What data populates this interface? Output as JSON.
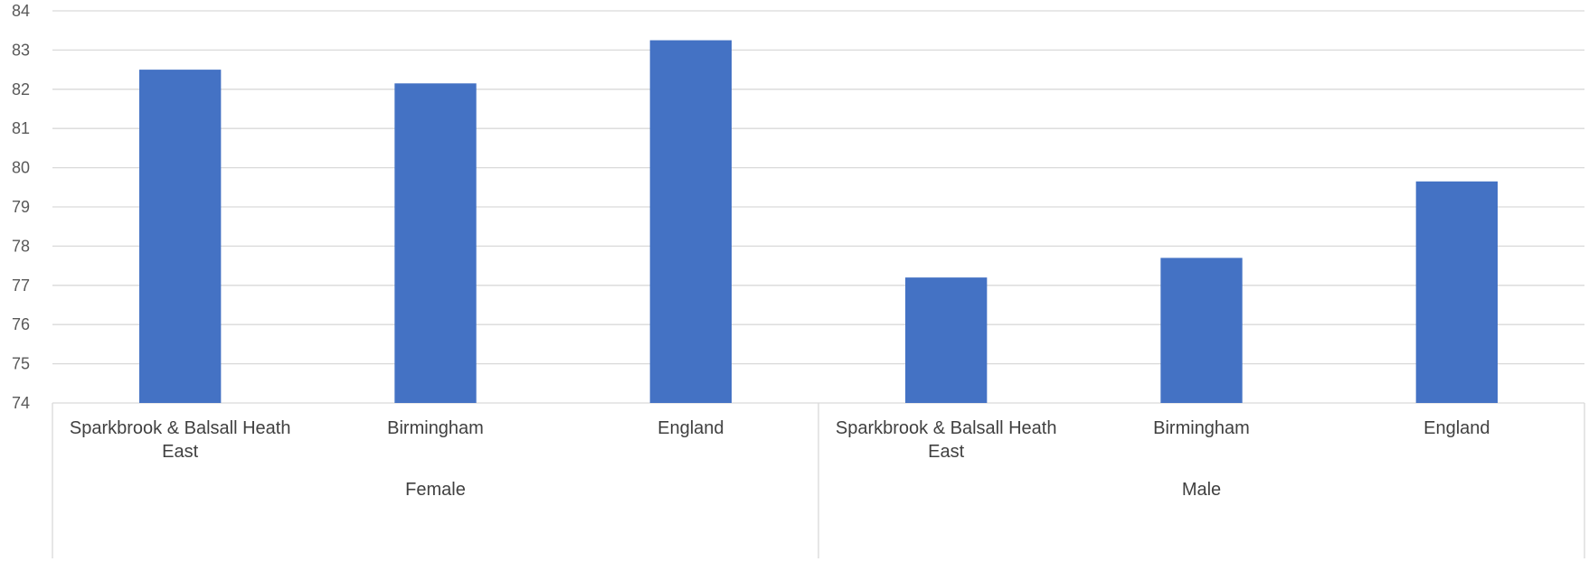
{
  "chart_data": {
    "type": "bar",
    "title": "",
    "xlabel": "",
    "ylabel": "",
    "ylim": [
      74,
      84
    ],
    "yticks": [
      74,
      75,
      76,
      77,
      78,
      79,
      80,
      81,
      82,
      83,
      84
    ],
    "grid": true,
    "legend": "none",
    "bar_color": "#4472C4",
    "groups": [
      {
        "label": "Female",
        "categories": [
          {
            "lines": [
              "Sparkbrook & Balsall Heath",
              "East"
            ],
            "value": 82.5
          },
          {
            "lines": [
              "Birmingham"
            ],
            "value": 82.15
          },
          {
            "lines": [
              "England"
            ],
            "value": 83.25
          }
        ]
      },
      {
        "label": "Male",
        "categories": [
          {
            "lines": [
              "Sparkbrook & Balsall Heath",
              "East"
            ],
            "value": 77.2
          },
          {
            "lines": [
              "Birmingham"
            ],
            "value": 77.7
          },
          {
            "lines": [
              "England"
            ],
            "value": 79.65
          }
        ]
      }
    ]
  }
}
